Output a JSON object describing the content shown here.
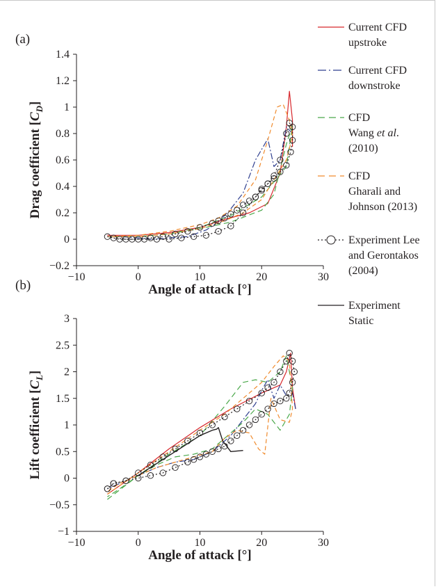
{
  "panels": [
    {
      "id": "a",
      "label": "(a)"
    },
    {
      "id": "b",
      "label": "(b)"
    }
  ],
  "colors": {
    "cfd_up": "#d7262b",
    "cfd_down": "#2f3f8f",
    "wang": "#4aa84a",
    "gharali": "#f08a2c",
    "exp_lee": "#231f20",
    "exp_static": "#231f20"
  },
  "legend": [
    {
      "key": "cfd_up",
      "lines": [
        "Current CFD",
        "upstroke"
      ],
      "style": "solid"
    },
    {
      "key": "cfd_down",
      "lines": [
        "Current CFD",
        "downstroke"
      ],
      "style": "dashdot"
    },
    {
      "key": "wang",
      "lines": [
        "CFD",
        "Wang et al.",
        "(2010)"
      ],
      "style": "dash"
    },
    {
      "key": "gharali",
      "lines": [
        "CFD",
        "Gharali and",
        "Johnson (2013)"
      ],
      "style": "dash"
    },
    {
      "key": "exp_lee",
      "lines": [
        "Experiment Lee",
        "and Gerontakos",
        "(2004)"
      ],
      "style": "circles"
    },
    {
      "key": "exp_static",
      "lines": [
        "Experiment",
        "Static"
      ],
      "style": "solid"
    }
  ],
  "chart_data": [
    {
      "type": "line",
      "panel": "(a)",
      "xlabel": "Angle of attack [°]",
      "ylabel": "Drag coefficient [C_D]",
      "ylabel_main": "Drag coefficient [",
      "ylabel_sym": "C",
      "ylabel_sub": "D",
      "ylabel_end": "]",
      "xlim": [
        -10,
        30
      ],
      "ylim": [
        -0.2,
        1.4
      ],
      "xticks": [
        -10,
        0,
        10,
        20,
        30
      ],
      "xtick_labels": [
        "−10",
        "0",
        "10",
        "20",
        "30"
      ],
      "yticks": [
        -0.2,
        0,
        0.2,
        0.4,
        0.6,
        0.8,
        1,
        1.2,
        1.4
      ],
      "ytick_labels": [
        "−0.2",
        "0",
        "0.2",
        "0.4",
        "0.6",
        "0.8",
        "1",
        "1.2",
        "1.4"
      ],
      "series": [
        {
          "key": "cfd_up",
          "name": "Current CFD upstroke",
          "x": [
            -5,
            0,
            5,
            10,
            14,
            18,
            21,
            23,
            24,
            24.5,
            25,
            25
          ],
          "y": [
            0.03,
            0.03,
            0.05,
            0.09,
            0.15,
            0.2,
            0.27,
            0.5,
            0.85,
            1.12,
            0.9,
            0.7
          ]
        },
        {
          "key": "cfd_down",
          "name": "Current CFD downstroke",
          "x": [
            25,
            24,
            23,
            22,
            21,
            20,
            19,
            17,
            15,
            13,
            11,
            8,
            5,
            2,
            0,
            -3,
            -5
          ],
          "y": [
            0.8,
            0.85,
            0.6,
            0.55,
            0.76,
            0.68,
            0.6,
            0.35,
            0.23,
            0.13,
            0.07,
            0.02,
            0.01,
            0.0,
            0.01,
            0.02,
            0.02
          ]
        },
        {
          "key": "wang",
          "name": "CFD Wang et al. (2010)",
          "x": [
            -5,
            0,
            5,
            10,
            15,
            20,
            22,
            24,
            25,
            24,
            20,
            15,
            10,
            5,
            0,
            -5
          ],
          "y": [
            0.02,
            0.02,
            0.04,
            0.08,
            0.13,
            0.22,
            0.34,
            0.72,
            0.86,
            0.55,
            0.32,
            0.18,
            0.09,
            0.04,
            0.02,
            0.02
          ]
        },
        {
          "key": "gharali",
          "name": "CFD Gharali and Johnson (2013)",
          "x": [
            -5,
            0,
            5,
            10,
            13,
            16,
            19,
            21,
            22.5,
            23.5,
            24.5,
            25,
            24,
            22,
            20,
            17,
            14,
            10,
            5,
            0,
            -5
          ],
          "y": [
            0.02,
            0.03,
            0.06,
            0.11,
            0.16,
            0.25,
            0.45,
            0.75,
            1.0,
            1.02,
            0.9,
            0.78,
            0.6,
            0.45,
            0.3,
            0.2,
            0.14,
            0.08,
            0.04,
            0.02,
            0.02
          ]
        },
        {
          "key": "exp_lee",
          "name": "Experiment Lee and Gerontakos (2004)",
          "x": [
            -5,
            -3,
            -1,
            1,
            3,
            5,
            7,
            9,
            11,
            13,
            15,
            17,
            19,
            20,
            21,
            22,
            23,
            24,
            24.5,
            25,
            25,
            24.7,
            24,
            23,
            22,
            21,
            20,
            19,
            18,
            17,
            16,
            15,
            14,
            13,
            12,
            10,
            8,
            6,
            4,
            2,
            0,
            -2,
            -4
          ],
          "y": [
            0.02,
            0.0,
            0.0,
            0.0,
            0.0,
            0.0,
            0.01,
            0.02,
            0.03,
            0.06,
            0.1,
            0.2,
            0.32,
            0.38,
            0.42,
            0.48,
            0.6,
            0.8,
            0.88,
            0.85,
            0.75,
            0.66,
            0.56,
            0.51,
            0.46,
            0.42,
            0.37,
            0.32,
            0.29,
            0.26,
            0.22,
            0.19,
            0.16,
            0.14,
            0.12,
            0.09,
            0.06,
            0.04,
            0.02,
            0.01,
            0.0,
            0.0,
            0.01
          ]
        }
      ]
    },
    {
      "type": "line",
      "panel": "(b)",
      "xlabel": "Angle of attack [°]",
      "ylabel": "Lift coefficient [C_L]",
      "ylabel_main": "Lift coefficient [",
      "ylabel_sym": "C",
      "ylabel_sub": "L",
      "ylabel_end": "]",
      "xlim": [
        -10,
        30
      ],
      "ylim": [
        -1,
        3
      ],
      "xticks": [
        -10,
        0,
        10,
        20,
        30
      ],
      "xtick_labels": [
        "−10",
        "0",
        "10",
        "20",
        "30"
      ],
      "yticks": [
        -1,
        -0.5,
        0,
        0.5,
        1,
        1.5,
        2,
        2.5,
        3
      ],
      "ytick_labels": [
        "−1",
        "−0.5",
        "0",
        "0.5",
        "1",
        "1.5",
        "2",
        "2.5",
        "3"
      ],
      "series": [
        {
          "key": "cfd_up",
          "name": "Current CFD upstroke",
          "x": [
            -5,
            0,
            5,
            10,
            15,
            20,
            23,
            24,
            24.7,
            25,
            25.5
          ],
          "y": [
            -0.3,
            0.1,
            0.55,
            0.95,
            1.3,
            1.6,
            1.75,
            2.0,
            2.35,
            1.7,
            1.3
          ]
        },
        {
          "key": "cfd_down",
          "name": "Current CFD downstroke",
          "x": [
            25.5,
            25,
            24,
            23,
            22,
            21,
            20,
            19,
            17,
            15,
            12,
            9,
            6,
            3,
            0,
            -3,
            -5
          ],
          "y": [
            1.3,
            1.6,
            1.55,
            1.75,
            1.5,
            1.85,
            1.65,
            1.4,
            1.1,
            0.8,
            0.5,
            0.35,
            0.3,
            0.2,
            0.05,
            -0.1,
            -0.2
          ]
        },
        {
          "key": "wang",
          "name": "CFD Wang et al. (2010)",
          "x": [
            -5,
            0,
            5,
            10,
            14,
            17,
            19,
            21,
            23,
            24,
            25,
            24.5,
            23,
            21,
            19,
            17,
            15,
            12,
            9,
            6,
            3,
            0,
            -3,
            -5
          ],
          "y": [
            -0.4,
            0.05,
            0.45,
            0.8,
            1.35,
            1.8,
            1.85,
            1.8,
            2.0,
            2.3,
            1.7,
            1.2,
            0.9,
            1.2,
            1.3,
            1.05,
            0.85,
            0.55,
            0.45,
            0.4,
            0.25,
            0.05,
            -0.2,
            -0.35
          ]
        },
        {
          "key": "gharali",
          "name": "CFD Gharali and Johnson (2013)",
          "x": [
            -5,
            0,
            5,
            10,
            14,
            17,
            20,
            22,
            23.5,
            24.5,
            25,
            24.5,
            23,
            21.5,
            20.5,
            19.5,
            18,
            16,
            14,
            12,
            9,
            6,
            3,
            0,
            -3,
            -5
          ],
          "y": [
            -0.3,
            0.1,
            0.5,
            0.9,
            1.2,
            1.5,
            1.8,
            2.1,
            2.3,
            2.2,
            1.3,
            1.05,
            1.1,
            1.5,
            0.45,
            0.55,
            0.85,
            0.9,
            0.75,
            0.5,
            0.4,
            0.3,
            0.2,
            0.05,
            -0.1,
            -0.25
          ]
        },
        {
          "key": "exp_lee",
          "name": "Experiment Lee and Gerontakos (2004)",
          "x": [
            -5,
            -4,
            -2,
            0,
            2,
            4,
            6,
            8,
            10,
            12,
            14,
            16,
            18,
            20,
            21,
            22,
            23,
            24,
            24.5,
            25,
            25.3,
            25,
            24.5,
            24,
            23,
            22,
            21,
            20,
            19,
            18,
            17,
            16,
            15,
            14,
            13,
            12,
            11,
            10,
            9,
            8,
            6,
            4,
            2,
            0,
            -2,
            -4,
            -5
          ],
          "y": [
            -0.2,
            -0.1,
            -0.05,
            0.1,
            0.25,
            0.4,
            0.55,
            0.7,
            0.85,
            1.0,
            1.15,
            1.3,
            1.45,
            1.6,
            1.7,
            1.8,
            2.0,
            2.2,
            2.35,
            2.2,
            2.0,
            1.8,
            1.6,
            1.5,
            1.45,
            1.4,
            1.3,
            1.2,
            1.1,
            1.0,
            0.9,
            0.8,
            0.7,
            0.6,
            0.55,
            0.5,
            0.45,
            0.4,
            0.35,
            0.3,
            0.2,
            0.1,
            0.05,
            0.0,
            -0.05,
            -0.1,
            -0.2
          ]
        },
        {
          "key": "exp_static",
          "name": "Experiment Static",
          "x": [
            0,
            4,
            8,
            10,
            12,
            12.7,
            13,
            13.7,
            15,
            17
          ],
          "y": [
            0.05,
            0.35,
            0.65,
            0.8,
            0.9,
            0.92,
            0.95,
            0.7,
            0.5,
            0.52
          ]
        }
      ]
    }
  ]
}
